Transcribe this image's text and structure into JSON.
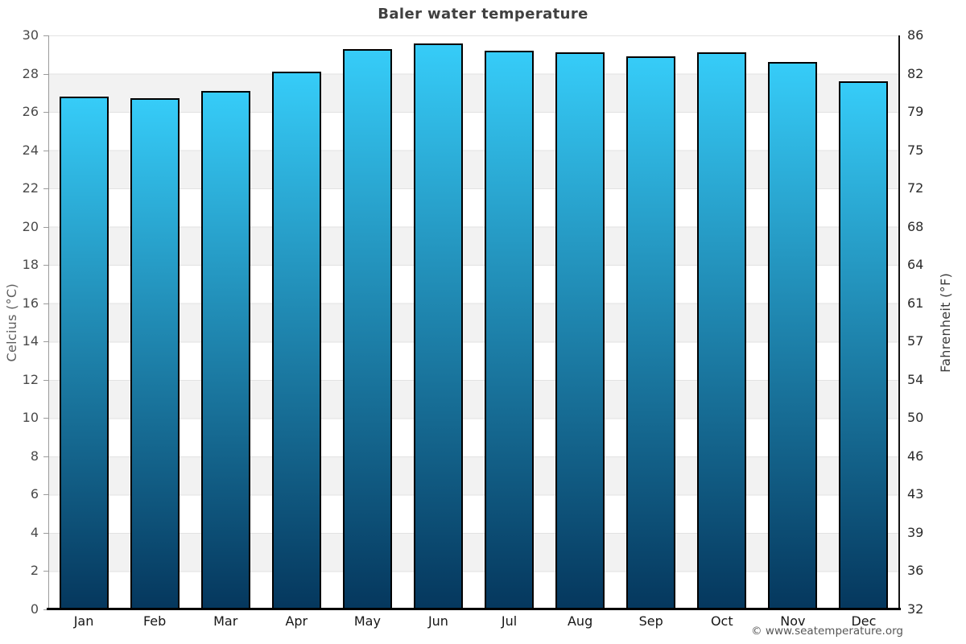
{
  "title": "Baler water temperature",
  "watermark": "© www.seatemperature.org",
  "colors": {
    "bar_top": "#36ccf8",
    "bar_bottom": "#05375d",
    "bar_border": "#000000",
    "band_gray": "#f2f2f2",
    "band_white": "#ffffff",
    "title_text": "#404040"
  },
  "chart_data": {
    "type": "bar",
    "title": "Baler water temperature",
    "categories": [
      "Jan",
      "Feb",
      "Mar",
      "Apr",
      "May",
      "Jun",
      "Jul",
      "Aug",
      "Sep",
      "Oct",
      "Nov",
      "Dec"
    ],
    "values": [
      26.8,
      26.7,
      27.1,
      28.1,
      29.3,
      29.6,
      29.2,
      29.1,
      28.9,
      29.1,
      28.6,
      27.6
    ],
    "unit": "°C",
    "ylabel_left": "Celcius (°C)",
    "ylabel_right": "Fahrenheit (°F)",
    "ylim": [
      0,
      30
    ],
    "yticks_celsius": [
      30,
      28,
      26,
      24,
      22,
      20,
      18,
      16,
      14,
      12,
      10,
      8,
      6,
      4,
      2,
      0
    ],
    "yticks_fahrenheit": [
      86,
      82,
      79,
      75,
      72,
      68,
      64,
      61,
      57,
      54,
      50,
      46,
      43,
      39,
      36,
      32
    ],
    "grid": "alternating horizontal bands every 2°C (white / light gray), band boundary lines",
    "legend": "none",
    "bar_style": "vertical gradient cyan to dark navy, black outline"
  }
}
